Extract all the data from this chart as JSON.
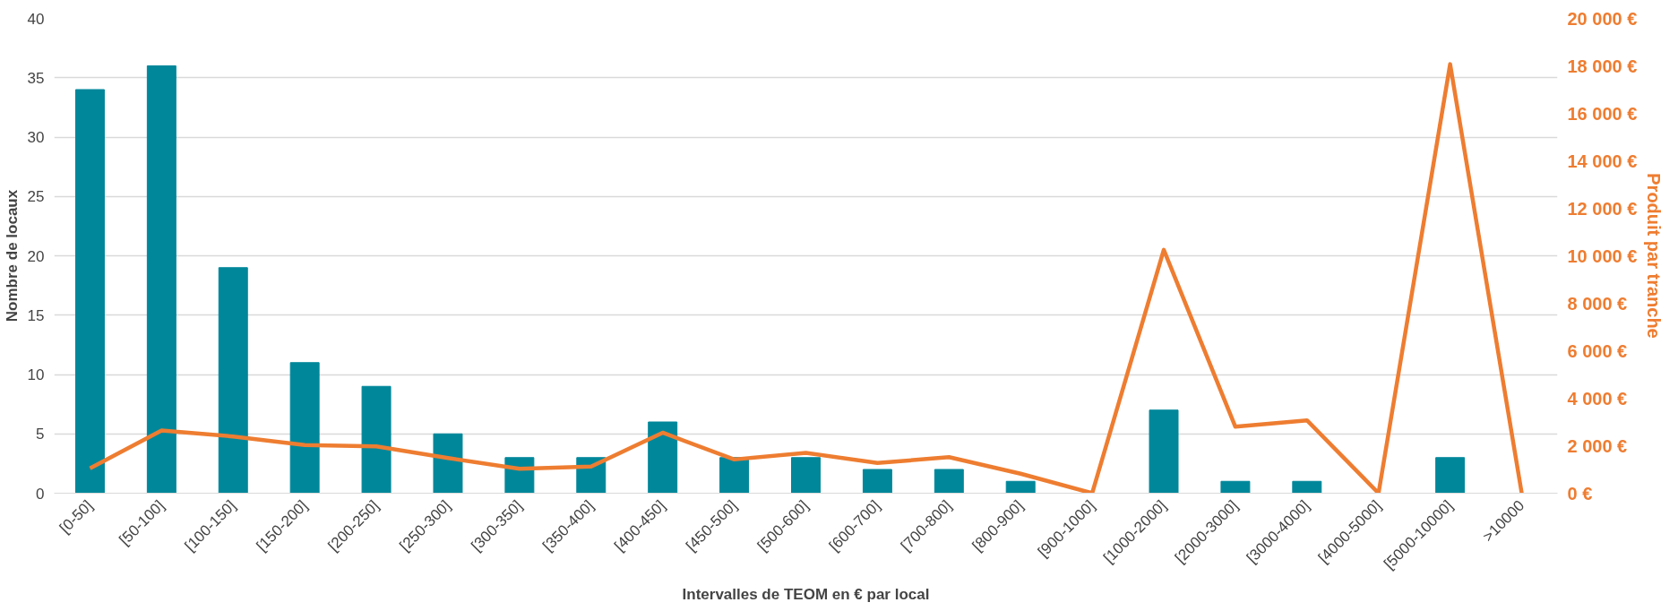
{
  "chart_data": {
    "type": "bar",
    "xlabel": "Intervalles de TEOM en € par local",
    "ylabel": "Nombre de locaux",
    "y2label": "Produit par tranche",
    "categories": [
      "[0-50]",
      "[50-100]",
      "[100-150]",
      "[150-200]",
      "[200-250]",
      "[250-300]",
      "[300-350]",
      "[350-400]",
      "[400-450]",
      "[450-500]",
      "[500-600]",
      "[600-700]",
      "[700-800]",
      "[800-900]",
      "[900-1000]",
      "[1000-2000]",
      "[2000-3000]",
      "[3000-4000]",
      "[4000-5000]",
      "[5000-10000]",
      ">10000"
    ],
    "series": [
      {
        "color": "#00879a",
        "values": [
          34,
          36,
          19,
          11,
          9,
          5,
          3,
          3,
          6,
          3,
          3,
          2,
          2,
          1,
          0,
          7,
          1,
          1,
          0,
          3,
          0
        ]
      },
      {
        "type": "line",
        "axis": "y2",
        "color": "#ee7d31",
        "values": [
          1050,
          2640,
          2390,
          2030,
          1970,
          1480,
          1030,
          1120,
          2550,
          1420,
          1700,
          1270,
          1520,
          820,
          0,
          10250,
          2800,
          3070,
          0,
          18070,
          0
        ]
      }
    ],
    "ylim": [
      0,
      40
    ],
    "yticks": [
      0,
      5,
      10,
      15,
      20,
      25,
      30,
      35,
      40
    ],
    "y2lim": [
      0,
      20000
    ],
    "y2ticks": [
      {
        "value": 0,
        "label": "0 €"
      },
      {
        "value": 2000,
        "label": "2 000 €"
      },
      {
        "value": 4000,
        "label": "4 000 €"
      },
      {
        "value": 6000,
        "label": "6 000 €"
      },
      {
        "value": 8000,
        "label": "8 000 €"
      },
      {
        "value": 10000,
        "label": "10 000 €"
      },
      {
        "value": 12000,
        "label": "12 000 €"
      },
      {
        "value": 14000,
        "label": "14 000 €"
      },
      {
        "value": 16000,
        "label": "16 000 €"
      },
      {
        "value": 18000,
        "label": "18 000 €"
      },
      {
        "value": 20000,
        "label": "20 000 €"
      }
    ],
    "grid": "y",
    "marker": "none",
    "line_style": "solid"
  }
}
